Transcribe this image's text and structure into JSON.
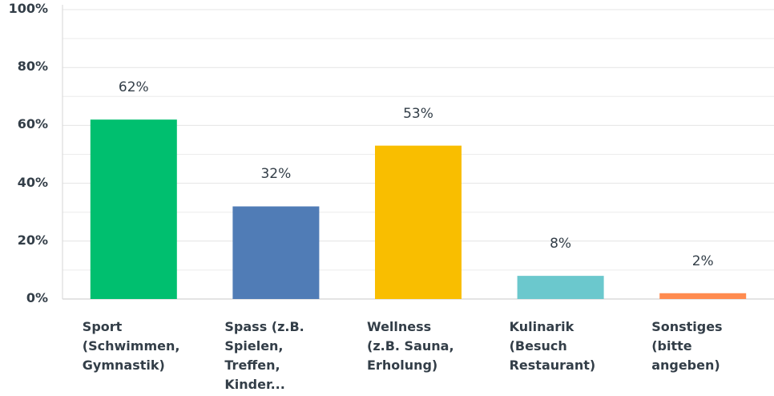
{
  "chart_data": {
    "type": "bar",
    "categories": [
      "Sport\n(Schwimmen,\nGymnastik)",
      "Spass (z.B.\nSpielen,\nTreffen,\nKinder...",
      "Wellness\n(z.B. Sauna,\nErholung)",
      "Kulinarik\n(Besuch\nRestaurant)",
      "Sonstiges\n(bitte\nangeben)"
    ],
    "values": [
      62,
      32,
      53,
      8,
      2
    ],
    "value_labels": [
      "62%",
      "32%",
      "53%",
      "8%",
      "2%"
    ],
    "colors": [
      "#00bf6f",
      "#507cb6",
      "#f9be00",
      "#6bc8cd",
      "#ff8b4f"
    ],
    "ylim": [
      0,
      100
    ],
    "yticks": [
      {
        "value": 0,
        "label": "0%"
      },
      {
        "value": 20,
        "label": "20%"
      },
      {
        "value": 40,
        "label": "40%"
      },
      {
        "value": 60,
        "label": "60%"
      },
      {
        "value": 80,
        "label": "80%"
      },
      {
        "value": 100,
        "label": "100%"
      }
    ],
    "minor_yticks": [
      10,
      30,
      50,
      70,
      90
    ],
    "grid": true
  }
}
